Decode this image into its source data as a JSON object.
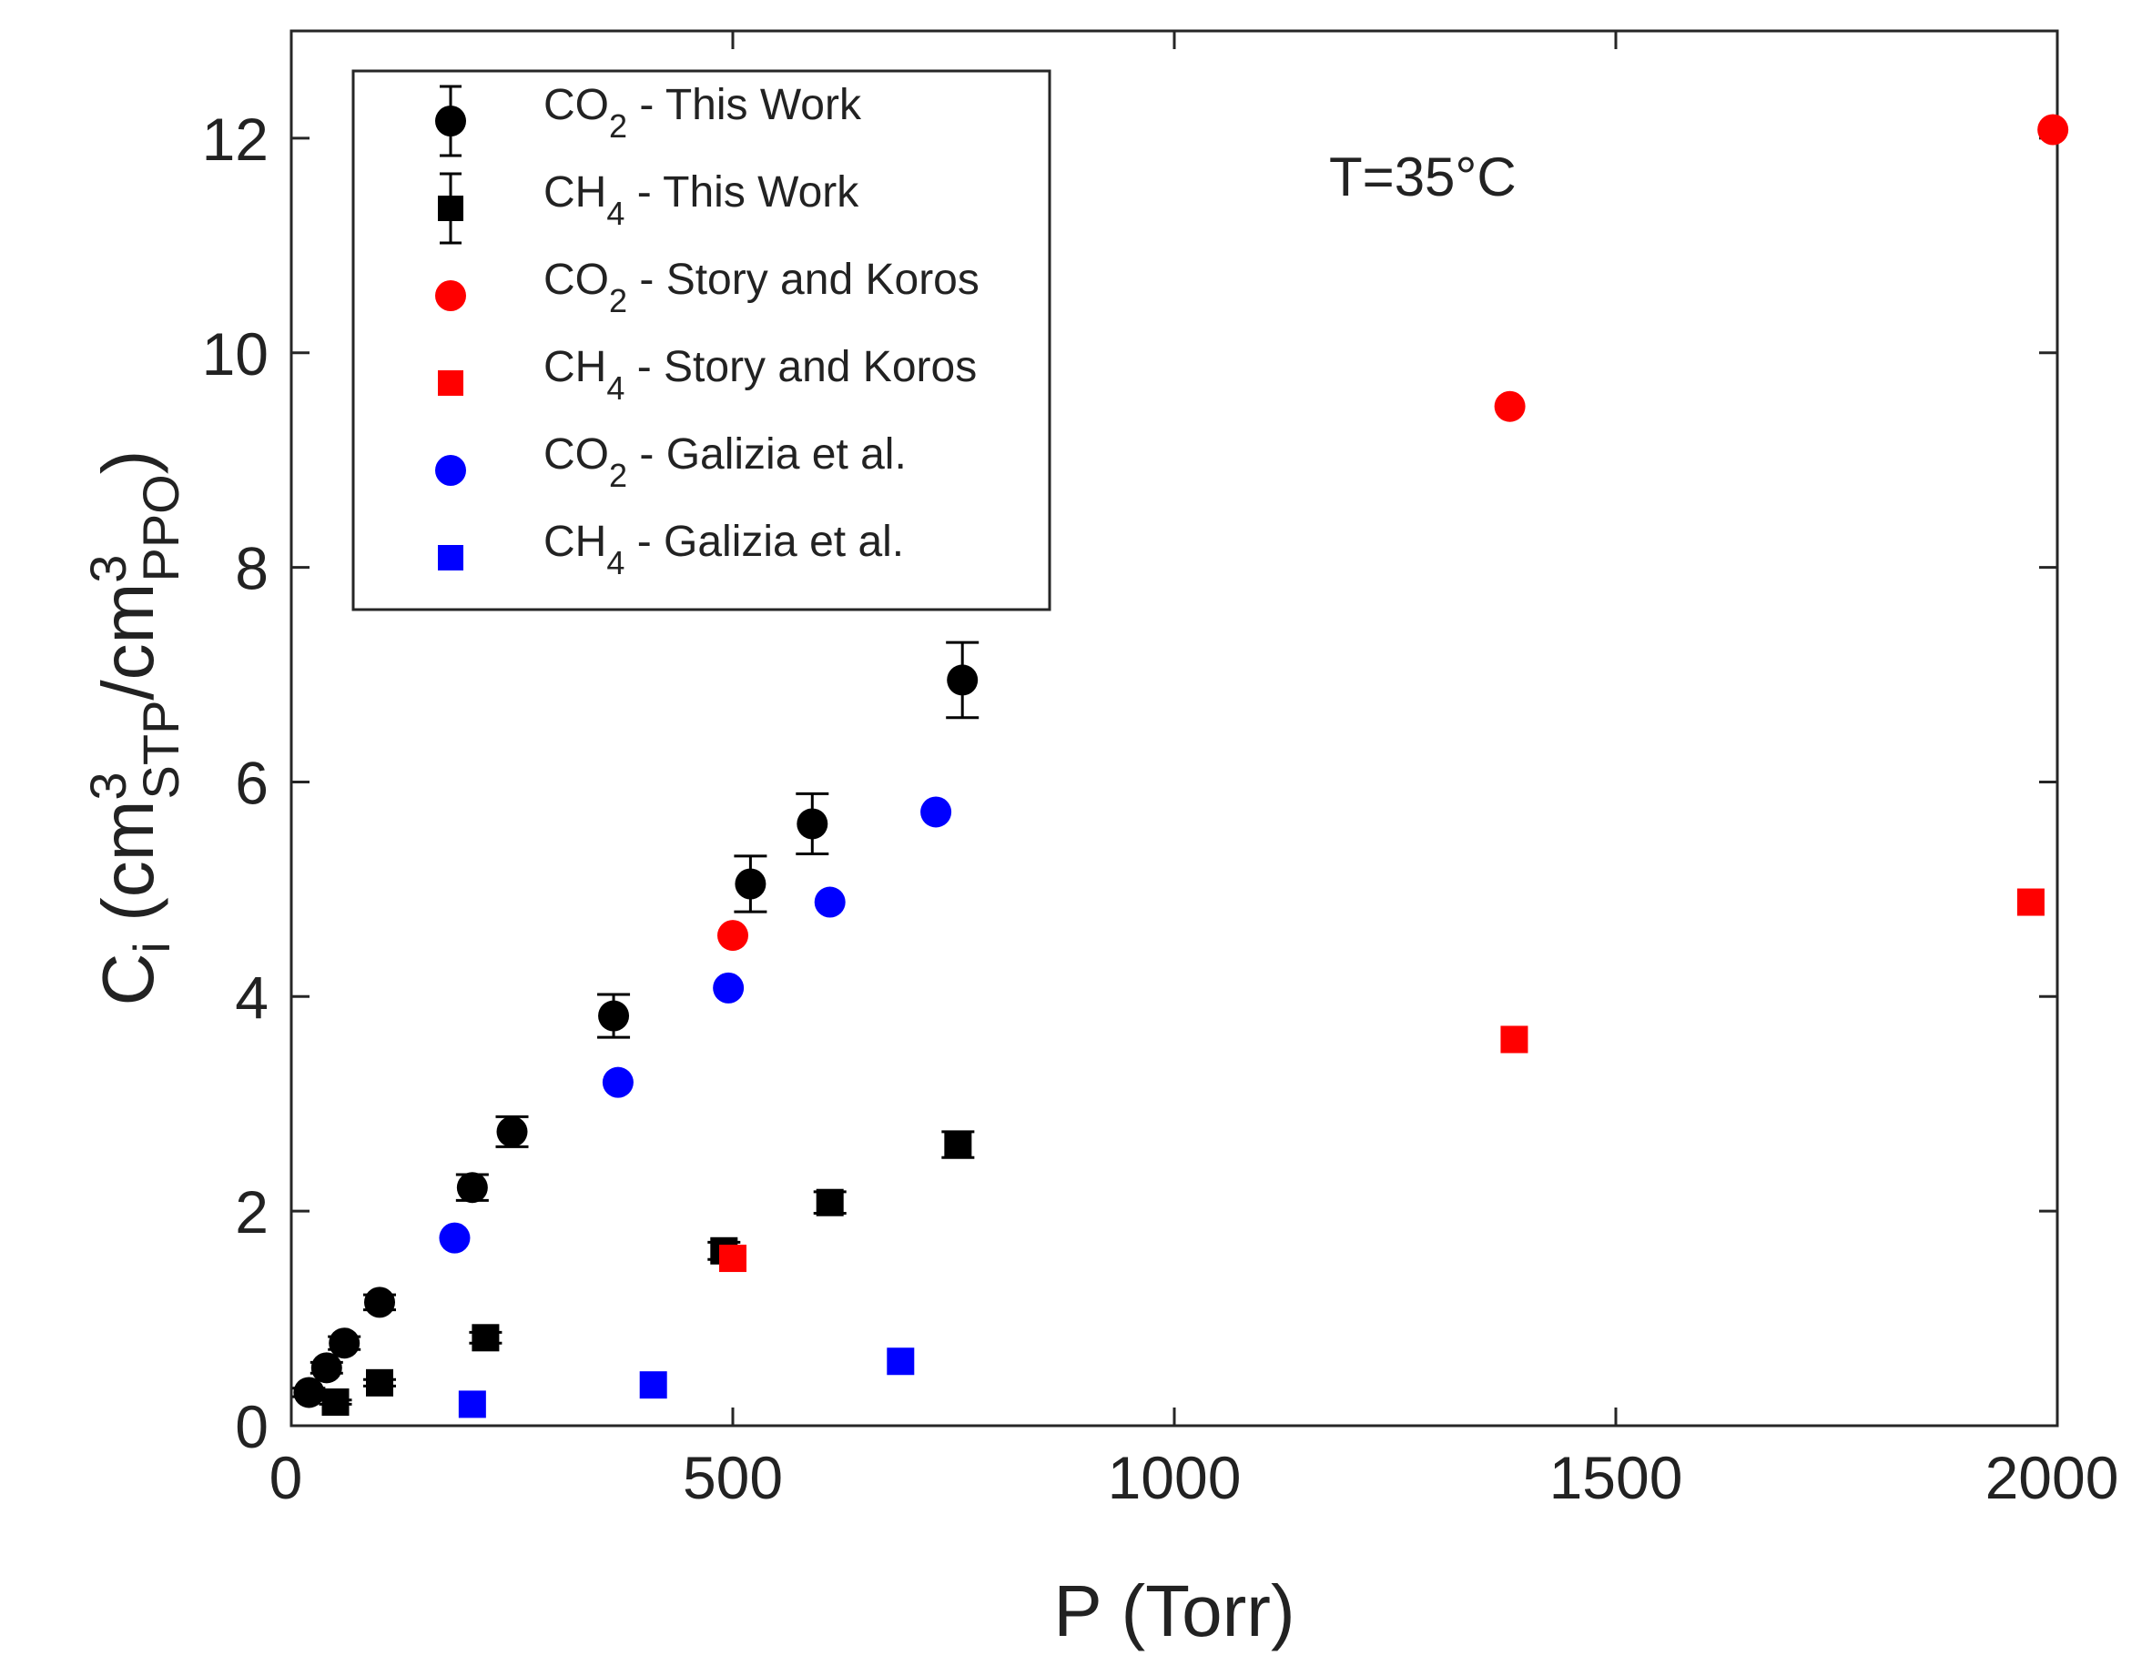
{
  "chart_data": {
    "type": "scatter",
    "title": "",
    "xlabel": "P (Torr)",
    "ylabel": {
      "main": "C",
      "main_sub": "i",
      "open": " (cm",
      "sup1": "3",
      "sub1": "STP",
      "mid": "/cm",
      "sup2": "3",
      "sub2": "PPO",
      "close": ")"
    },
    "xlim": [
      0,
      2000
    ],
    "ylim": [
      0,
      13
    ],
    "xticks": [
      0,
      500,
      1000,
      1500,
      2000
    ],
    "yticks": [
      0,
      2,
      4,
      6,
      8,
      10,
      12
    ],
    "xtick_labels": [
      "0",
      "500",
      "1000",
      "1500",
      "2000"
    ],
    "ytick_labels": [
      "0",
      "2",
      "4",
      "6",
      "8",
      "10",
      "12"
    ],
    "grid": false,
    "legend_position": "top-left",
    "annotation": "T=35°C",
    "series": [
      {
        "name": "CO2 - This Work",
        "label_main": "CO",
        "label_sub": "2",
        "label_rest": " - This Work",
        "color": "#000000",
        "marker": "circle",
        "x": [
          20,
          40,
          60,
          100,
          205,
          250,
          365,
          520,
          590,
          760
        ],
        "y": [
          0.31,
          0.54,
          0.77,
          1.15,
          2.22,
          2.74,
          3.82,
          5.05,
          5.61,
          6.95
        ],
        "yerr": [
          0.04,
          0.05,
          0.06,
          0.07,
          0.12,
          0.14,
          0.2,
          0.26,
          0.28,
          0.35
        ]
      },
      {
        "name": "CH4 - This Work",
        "label_main": "CH",
        "label_sub": "4",
        "label_rest": " - This Work",
        "color": "#000000",
        "marker": "square",
        "x": [
          50,
          100,
          220,
          490,
          610,
          755
        ],
        "y": [
          0.22,
          0.4,
          0.82,
          1.63,
          2.08,
          2.62
        ],
        "yerr": [
          0.02,
          0.03,
          0.05,
          0.08,
          0.1,
          0.12
        ]
      },
      {
        "name": "CO2 - Story and Koros",
        "label_main": "CO",
        "label_sub": "2",
        "label_rest": " - Story and Koros",
        "color": "#ff0000",
        "marker": "circle",
        "x": [
          500,
          1380,
          1995
        ],
        "y": [
          4.57,
          9.5,
          12.08
        ]
      },
      {
        "name": "CH4 - Story and Koros",
        "label_main": "CH",
        "label_sub": "4",
        "label_rest": " - Story and Koros",
        "color": "#ff0000",
        "marker": "square",
        "x": [
          500,
          1385,
          1970
        ],
        "y": [
          1.56,
          3.6,
          4.88
        ]
      },
      {
        "name": "CO2 - Galizia et al.",
        "label_main": "CO",
        "label_sub": "2",
        "label_rest": " - Galizia et al.",
        "color": "#0000ff",
        "marker": "circle",
        "x": [
          185,
          370,
          495,
          610,
          730
        ],
        "y": [
          1.75,
          3.2,
          4.08,
          4.88,
          5.72
        ]
      },
      {
        "name": "CH4 - Galizia et al.",
        "label_main": "CH",
        "label_sub": "4",
        "label_rest": " - Galizia et al.",
        "color": "#0000ff",
        "marker": "square",
        "x": [
          205,
          410,
          690
        ],
        "y": [
          0.2,
          0.38,
          0.6
        ]
      }
    ]
  }
}
